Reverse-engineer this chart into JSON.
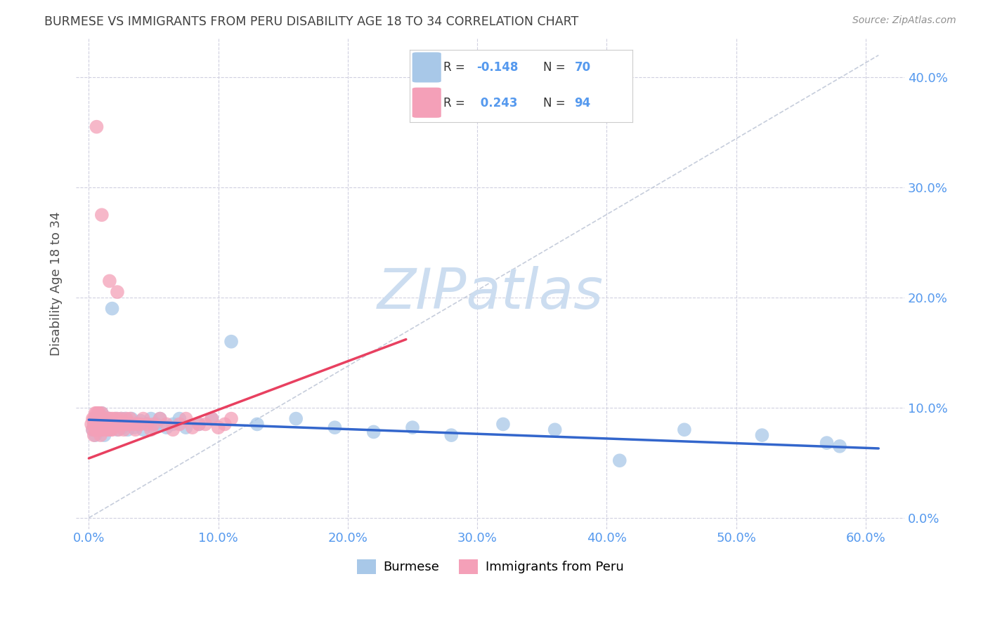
{
  "title": "BURMESE VS IMMIGRANTS FROM PERU DISABILITY AGE 18 TO 34 CORRELATION CHART",
  "source": "Source: ZipAtlas.com",
  "xlabel_vals": [
    0.0,
    0.1,
    0.2,
    0.3,
    0.4,
    0.5,
    0.6
  ],
  "ylabel_vals": [
    0.0,
    0.1,
    0.2,
    0.3,
    0.4
  ],
  "xlim": [
    -0.01,
    0.63
  ],
  "ylim": [
    -0.01,
    0.435
  ],
  "ylabel": "Disability Age 18 to 34",
  "burmese_color": "#a8c8e8",
  "peru_color": "#f4a0b8",
  "burmese_line_color": "#3366cc",
  "peru_line_color": "#e84060",
  "axis_tick_color": "#5599ee",
  "grid_color": "#d0d0e0",
  "watermark_color": "#ccddf0",
  "blue_trend_x0": 0.0,
  "blue_trend_x1": 0.61,
  "blue_trend_y0": 0.089,
  "blue_trend_y1": 0.063,
  "pink_trend_x0": 0.0,
  "pink_trend_x1": 0.245,
  "pink_trend_y0": 0.054,
  "pink_trend_y1": 0.162,
  "ref_line_x0": 0.0,
  "ref_line_x1": 0.61,
  "ref_line_y0": 0.0,
  "ref_line_y1": 0.42,
  "burmese_x": [
    0.003,
    0.004,
    0.005,
    0.005,
    0.005,
    0.006,
    0.006,
    0.007,
    0.007,
    0.008,
    0.008,
    0.009,
    0.009,
    0.01,
    0.01,
    0.01,
    0.011,
    0.011,
    0.012,
    0.012,
    0.013,
    0.013,
    0.014,
    0.015,
    0.015,
    0.016,
    0.016,
    0.017,
    0.018,
    0.018,
    0.02,
    0.021,
    0.022,
    0.023,
    0.025,
    0.026,
    0.027,
    0.028,
    0.03,
    0.031,
    0.033,
    0.035,
    0.037,
    0.04,
    0.042,
    0.045,
    0.048,
    0.05,
    0.052,
    0.055,
    0.06,
    0.065,
    0.07,
    0.075,
    0.085,
    0.095,
    0.11,
    0.13,
    0.16,
    0.19,
    0.22,
    0.25,
    0.28,
    0.32,
    0.36,
    0.41,
    0.46,
    0.52,
    0.57,
    0.58
  ],
  "burmese_y": [
    0.08,
    0.085,
    0.09,
    0.08,
    0.075,
    0.085,
    0.09,
    0.088,
    0.082,
    0.09,
    0.085,
    0.08,
    0.09,
    0.085,
    0.09,
    0.095,
    0.08,
    0.088,
    0.085,
    0.075,
    0.09,
    0.085,
    0.088,
    0.08,
    0.09,
    0.085,
    0.09,
    0.082,
    0.19,
    0.085,
    0.085,
    0.09,
    0.08,
    0.088,
    0.09,
    0.082,
    0.085,
    0.09,
    0.08,
    0.085,
    0.09,
    0.082,
    0.085,
    0.088,
    0.08,
    0.085,
    0.09,
    0.082,
    0.085,
    0.09,
    0.082,
    0.085,
    0.09,
    0.082,
    0.085,
    0.09,
    0.16,
    0.085,
    0.09,
    0.082,
    0.078,
    0.082,
    0.075,
    0.085,
    0.08,
    0.052,
    0.08,
    0.075,
    0.068,
    0.065
  ],
  "peru_x": [
    0.002,
    0.003,
    0.003,
    0.004,
    0.004,
    0.004,
    0.005,
    0.005,
    0.005,
    0.005,
    0.006,
    0.006,
    0.006,
    0.006,
    0.007,
    0.007,
    0.007,
    0.007,
    0.007,
    0.008,
    0.008,
    0.008,
    0.008,
    0.008,
    0.009,
    0.009,
    0.009,
    0.009,
    0.01,
    0.01,
    0.01,
    0.011,
    0.011,
    0.011,
    0.012,
    0.012,
    0.012,
    0.013,
    0.013,
    0.013,
    0.014,
    0.014,
    0.014,
    0.015,
    0.015,
    0.015,
    0.015,
    0.016,
    0.016,
    0.016,
    0.017,
    0.017,
    0.018,
    0.018,
    0.018,
    0.019,
    0.02,
    0.02,
    0.021,
    0.022,
    0.022,
    0.023,
    0.024,
    0.025,
    0.026,
    0.027,
    0.028,
    0.029,
    0.03,
    0.032,
    0.034,
    0.036,
    0.038,
    0.04,
    0.042,
    0.045,
    0.048,
    0.05,
    0.055,
    0.06,
    0.065,
    0.07,
    0.075,
    0.08,
    0.085,
    0.09,
    0.095,
    0.1,
    0.105,
    0.11,
    0.006,
    0.01,
    0.016,
    0.022
  ],
  "peru_y": [
    0.085,
    0.09,
    0.08,
    0.085,
    0.09,
    0.075,
    0.085,
    0.08,
    0.09,
    0.095,
    0.085,
    0.09,
    0.095,
    0.08,
    0.085,
    0.09,
    0.095,
    0.08,
    0.085,
    0.085,
    0.09,
    0.095,
    0.08,
    0.085,
    0.09,
    0.085,
    0.08,
    0.075,
    0.085,
    0.09,
    0.095,
    0.085,
    0.09,
    0.08,
    0.085,
    0.09,
    0.085,
    0.09,
    0.085,
    0.08,
    0.085,
    0.09,
    0.085,
    0.09,
    0.085,
    0.08,
    0.09,
    0.085,
    0.09,
    0.085,
    0.08,
    0.085,
    0.09,
    0.085,
    0.08,
    0.085,
    0.085,
    0.09,
    0.085,
    0.09,
    0.085,
    0.08,
    0.085,
    0.09,
    0.085,
    0.08,
    0.085,
    0.09,
    0.085,
    0.09,
    0.085,
    0.08,
    0.085,
    0.085,
    0.09,
    0.085,
    0.08,
    0.085,
    0.09,
    0.085,
    0.08,
    0.085,
    0.09,
    0.082,
    0.085,
    0.085,
    0.09,
    0.082,
    0.085,
    0.09,
    0.355,
    0.275,
    0.215,
    0.205
  ]
}
